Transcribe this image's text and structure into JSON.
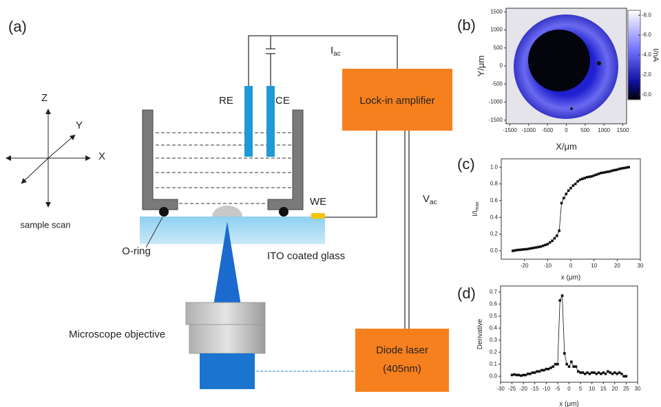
{
  "diagram": {
    "panel_labels": [
      "(a)",
      "(b)",
      "(c)",
      "(d)"
    ],
    "axes_labels": {
      "z": "Z",
      "y": "Y",
      "x": "X",
      "caption": "sample scan"
    },
    "electrodes": {
      "reference": "RE",
      "counter": "CE",
      "working": "WE"
    },
    "current_label": {
      "main": "I",
      "sub": "ac"
    },
    "voltage_label": {
      "main": "V",
      "sub": "ac"
    },
    "lock_in": "Lock-in amplifier",
    "laser": {
      "name": "Diode laser",
      "wavelength": "(405nm)"
    },
    "o_ring": "O-ring",
    "glass": "ITO coated glass",
    "objective": "Microscope objective"
  },
  "chart_data": [
    {
      "type": "image",
      "x_label": "X/μm",
      "y_label": "Y/μm",
      "xlim": [
        -1600,
        1600
      ],
      "xticks": [
        -1500,
        -1000,
        -500,
        0,
        500,
        1000,
        1500
      ],
      "ylim": [
        -1600,
        1600
      ],
      "yticks": [
        -1500,
        -1000,
        -500,
        0,
        500,
        1000,
        1500
      ],
      "colorbar_label": "I/nA",
      "colorbar_lim": [
        -8.5,
        0.5
      ],
      "colorbar_ticks": [
        {
          "value": -8,
          "label": "-8.0"
        },
        {
          "value": -6,
          "label": "-6.0"
        },
        {
          "value": -4,
          "label": "-4.0"
        },
        {
          "value": -2,
          "label": "-2.0"
        },
        {
          "value": 0,
          "label": "-0.0"
        }
      ]
    },
    {
      "type": "line",
      "x_label": "x (μm)",
      "y_label": "I/I",
      "y_label_sub": "max",
      "color": "#111111",
      "x": [
        -25,
        -24,
        -23,
        -22,
        -21,
        -20,
        -19,
        -18,
        -17,
        -16,
        -15,
        -14,
        -13,
        -12,
        -11,
        -10,
        -9,
        -8,
        -7,
        -6,
        -5,
        -4,
        -3,
        -2,
        -1,
        0,
        1,
        2,
        3,
        4,
        5,
        6,
        7,
        8,
        9,
        10,
        11,
        12,
        13,
        14,
        15,
        16,
        17,
        18,
        19,
        20,
        21,
        22,
        23,
        24,
        25
      ],
      "y": [
        0.0,
        0.005,
        0.01,
        0.012,
        0.015,
        0.018,
        0.02,
        0.025,
        0.03,
        0.035,
        0.04,
        0.045,
        0.05,
        0.06,
        0.07,
        0.08,
        0.1,
        0.12,
        0.15,
        0.18,
        0.24,
        0.57,
        0.63,
        0.68,
        0.72,
        0.75,
        0.78,
        0.8,
        0.83,
        0.85,
        0.86,
        0.87,
        0.88,
        0.885,
        0.89,
        0.9,
        0.91,
        0.92,
        0.93,
        0.935,
        0.94,
        0.945,
        0.95,
        0.96,
        0.965,
        0.97,
        0.98,
        0.985,
        0.99,
        0.995,
        1.0
      ],
      "xlim": [
        -30,
        30
      ],
      "xticks": [
        -20,
        -10,
        0,
        10,
        20,
        30
      ],
      "ylim": [
        -0.1,
        1.1
      ],
      "yticks": [
        {
          "value": 0,
          "label": "0.0"
        },
        {
          "value": 0.2,
          "label": "0.2"
        },
        {
          "value": 0.4,
          "label": "0.4"
        },
        {
          "value": 0.6,
          "label": "0.6"
        },
        {
          "value": 0.8,
          "label": "0.8"
        },
        {
          "value": 1,
          "label": "1.0"
        }
      ]
    },
    {
      "type": "line",
      "x_label": "x (μm)",
      "y_label": "Derivative",
      "color": "#111111",
      "x": [
        -25,
        -24,
        -23,
        -22,
        -21,
        -20,
        -19,
        -18,
        -17,
        -16,
        -15,
        -14,
        -13,
        -12,
        -11,
        -10,
        -9,
        -8,
        -7,
        -6,
        -5,
        -4,
        -3,
        -2,
        -1,
        0,
        1,
        2,
        3,
        4,
        5,
        6,
        7,
        8,
        9,
        10,
        11,
        12,
        13,
        14,
        15,
        16,
        17,
        18,
        19,
        20,
        21,
        22,
        23,
        24,
        25
      ],
      "y": [
        0.01,
        0.015,
        0.01,
        0.01,
        0.005,
        0.01,
        0.01,
        0.02,
        0.02,
        0.03,
        0.03,
        0.04,
        0.04,
        0.05,
        0.05,
        0.06,
        0.06,
        0.07,
        0.08,
        0.1,
        0.1,
        0.63,
        0.67,
        0.19,
        0.1,
        0.08,
        0.12,
        0.08,
        0.08,
        0.04,
        0.03,
        0.03,
        0.02,
        0.03,
        0.02,
        0.03,
        0.03,
        0.02,
        0.03,
        0.02,
        0.03,
        0.02,
        0.04,
        0.03,
        0.02,
        0.03,
        0.02,
        0.03,
        0.02,
        0.0,
        0.0
      ],
      "xlim": [
        -30,
        30
      ],
      "xticks": [
        -30,
        -25,
        -20,
        -15,
        -10,
        -5,
        0,
        5,
        10,
        15,
        20,
        25,
        30
      ],
      "ylim": [
        -0.05,
        0.75
      ],
      "yticks": [
        {
          "value": 0,
          "label": "0.0"
        },
        {
          "value": 0.1,
          "label": "0.1"
        },
        {
          "value": 0.2,
          "label": "0.2"
        },
        {
          "value": 0.3,
          "label": "0.3"
        },
        {
          "value": 0.4,
          "label": "0.4"
        },
        {
          "value": 0.5,
          "label": "0.5"
        },
        {
          "value": 0.6,
          "label": "0.6"
        },
        {
          "value": 0.7,
          "label": "0.7"
        }
      ]
    }
  ]
}
